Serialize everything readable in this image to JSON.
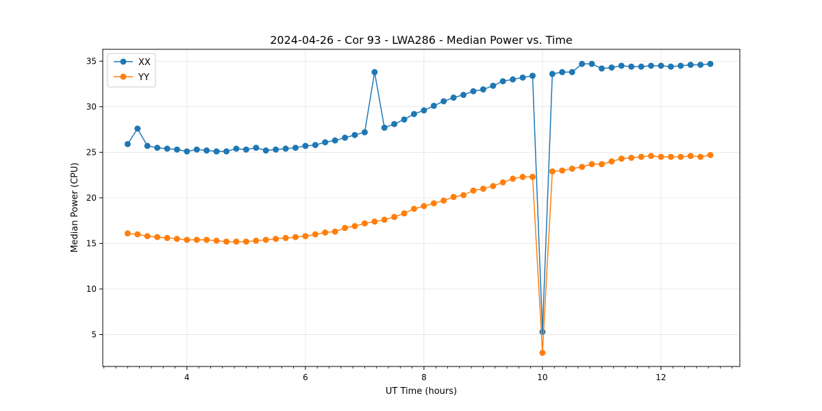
{
  "chart_data": {
    "type": "line",
    "title": "2024-04-26 - Cor 93 - LWA286 - Median Power vs. Time",
    "xlabel": "UT Time (hours)",
    "ylabel": "Median Power (CPU)",
    "xlim": [
      2.58,
      13.33
    ],
    "ylim": [
      1.5,
      36.3
    ],
    "xticks": [
      4,
      6,
      8,
      10,
      12
    ],
    "yticks": [
      5,
      10,
      15,
      20,
      25,
      30,
      35
    ],
    "grid": true,
    "legend_position": "top-left",
    "x": [
      3.0,
      3.167,
      3.333,
      3.5,
      3.667,
      3.833,
      4.0,
      4.167,
      4.333,
      4.5,
      4.667,
      4.833,
      5.0,
      5.167,
      5.333,
      5.5,
      5.667,
      5.833,
      6.0,
      6.167,
      6.333,
      6.5,
      6.667,
      6.833,
      7.0,
      7.167,
      7.333,
      7.5,
      7.667,
      7.833,
      8.0,
      8.167,
      8.333,
      8.5,
      8.667,
      8.833,
      9.0,
      9.167,
      9.333,
      9.5,
      9.667,
      9.833,
      10.0,
      10.167,
      10.333,
      10.5,
      10.667,
      10.833,
      11.0,
      11.167,
      11.333,
      11.5,
      11.667,
      11.833,
      12.0,
      12.167,
      12.333,
      12.5,
      12.667,
      12.833
    ],
    "series": [
      {
        "name": "XX",
        "color": "#1f77b4",
        "values": [
          25.9,
          27.6,
          25.7,
          25.5,
          25.4,
          25.3,
          25.1,
          25.3,
          25.2,
          25.1,
          25.1,
          25.4,
          25.3,
          25.5,
          25.2,
          25.3,
          25.4,
          25.5,
          25.7,
          25.8,
          26.1,
          26.3,
          26.6,
          26.9,
          27.2,
          33.8,
          27.7,
          28.1,
          28.6,
          29.2,
          29.6,
          30.1,
          30.6,
          31.0,
          31.3,
          31.7,
          31.9,
          32.3,
          32.8,
          33.0,
          33.2,
          33.4,
          5.3,
          33.6,
          33.8,
          33.8,
          34.7,
          34.7,
          34.2,
          34.3,
          34.5,
          34.4,
          34.4,
          34.5,
          34.5,
          34.4,
          34.5,
          34.6,
          34.6,
          34.7
        ]
      },
      {
        "name": "YY",
        "color": "#ff7f0e",
        "values": [
          16.1,
          16.0,
          15.8,
          15.7,
          15.6,
          15.5,
          15.4,
          15.4,
          15.4,
          15.3,
          15.2,
          15.2,
          15.2,
          15.3,
          15.4,
          15.5,
          15.6,
          15.7,
          15.8,
          16.0,
          16.2,
          16.3,
          16.7,
          16.9,
          17.2,
          17.4,
          17.6,
          17.9,
          18.3,
          18.8,
          19.1,
          19.4,
          19.7,
          20.1,
          20.3,
          20.8,
          21.0,
          21.3,
          21.7,
          22.1,
          22.3,
          22.3,
          3.0,
          22.9,
          23.0,
          23.2,
          23.4,
          23.7,
          23.7,
          24.0,
          24.3,
          24.4,
          24.5,
          24.6,
          24.5,
          24.5,
          24.5,
          24.6,
          24.5,
          24.7
        ]
      }
    ]
  }
}
